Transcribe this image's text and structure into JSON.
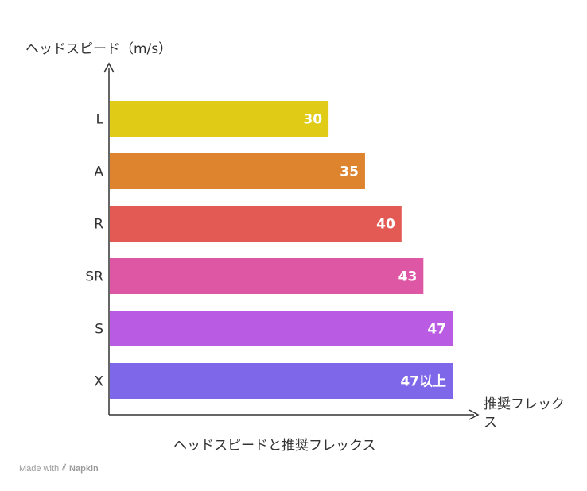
{
  "chart_data": {
    "type": "bar",
    "orientation": "horizontal",
    "ylabel": "ヘッドスピード（m/s）",
    "xlabel": "推奨フレックス",
    "caption": "ヘッドスピードと推奨フレックス",
    "categories": [
      "L",
      "A",
      "R",
      "SR",
      "S",
      "X"
    ],
    "values": [
      30,
      35,
      40,
      43,
      47,
      47
    ],
    "value_labels": [
      "30",
      "35",
      "40",
      "43",
      "47",
      "47以上"
    ],
    "colors": [
      "#e0cb17",
      "#de842e",
      "#e35a55",
      "#de57a5",
      "#b95be3",
      "#7e67e8"
    ],
    "xlim": [
      0,
      47
    ],
    "grid": false,
    "legend": "none"
  },
  "footer": {
    "made_with": "Made with",
    "brand": "Napkin"
  }
}
